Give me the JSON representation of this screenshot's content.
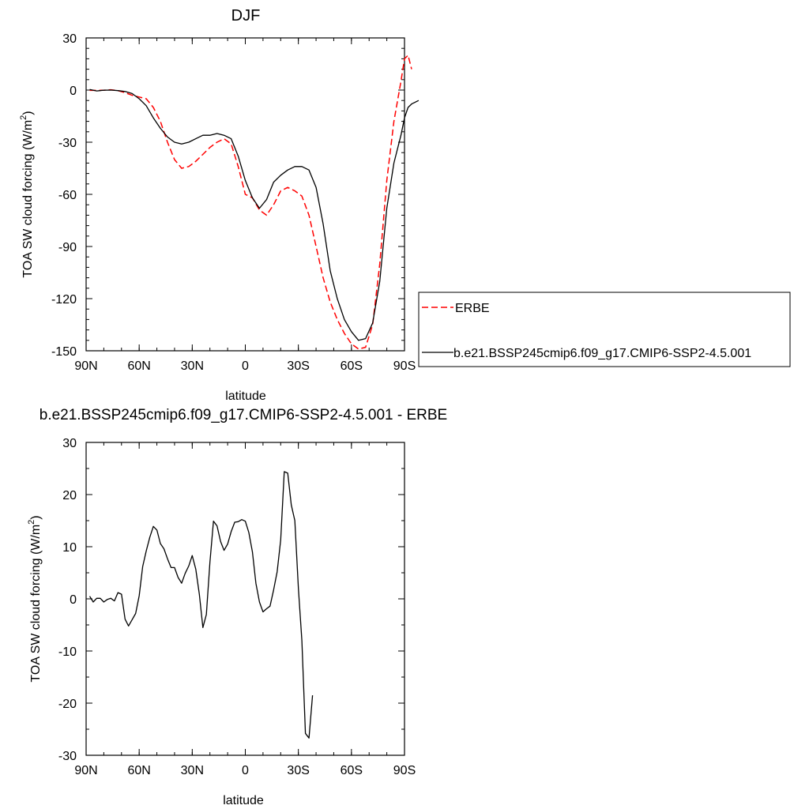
{
  "chart_data": [
    {
      "type": "line",
      "title": "DJF",
      "xlabel": "latitude",
      "ylabel": "TOA SW cloud forcing (W/m²)",
      "ylabel_main": "TOA SW cloud forcing (W/m",
      "ylabel_sup": "2",
      "ylabel_tail": ")",
      "xlim": [
        90,
        -90
      ],
      "ylim": [
        -150,
        30
      ],
      "x_ticks": [
        90,
        60,
        30,
        0,
        -30,
        -60,
        -90
      ],
      "x_tick_labels": [
        "90N",
        "60N",
        "30N",
        "0",
        "30S",
        "60S",
        "90S"
      ],
      "y_ticks": [
        30,
        0,
        -30,
        -60,
        -90,
        -120,
        -150
      ],
      "y_tick_labels": [
        "30",
        "0",
        "-30",
        "-60",
        "-90",
        "-120",
        "-150"
      ],
      "grid": false,
      "legend": {
        "placement": "right",
        "entries": [
          "ERBE",
          "b.e21.BSSP245cmip6.f09_g17.CMIP6-SSP2-4.5.001"
        ]
      },
      "series": [
        {
          "name": "ERBE",
          "color": "#ff0000",
          "dash": true,
          "points": [
            [
              88,
              -0.2
            ],
            [
              84,
              -0.2
            ],
            [
              80,
              -0.1
            ],
            [
              76,
              0.2
            ],
            [
              72,
              -0.3
            ],
            [
              68,
              -1.5
            ],
            [
              64,
              -3
            ],
            [
              60,
              -4
            ],
            [
              56,
              -5
            ],
            [
              52,
              -10
            ],
            [
              48,
              -18
            ],
            [
              44,
              -30
            ],
            [
              40,
              -40
            ],
            [
              36,
              -45
            ],
            [
              32,
              -44
            ],
            [
              28,
              -41
            ],
            [
              24,
              -37
            ],
            [
              20,
              -33
            ],
            [
              16,
              -30
            ],
            [
              12,
              -28
            ],
            [
              8,
              -31
            ],
            [
              4,
              -44
            ],
            [
              0,
              -60
            ],
            [
              -4,
              -62
            ],
            [
              -8,
              -69
            ],
            [
              -12,
              -72
            ],
            [
              -16,
              -66
            ],
            [
              -20,
              -58
            ],
            [
              -24,
              -56
            ],
            [
              -28,
              -58
            ],
            [
              -32,
              -61
            ],
            [
              -36,
              -72
            ],
            [
              -40,
              -90
            ],
            [
              -44,
              -108
            ],
            [
              -48,
              -122
            ],
            [
              -52,
              -132
            ],
            [
              -56,
              -140
            ],
            [
              -60,
              -146
            ],
            [
              -64,
              -149
            ],
            [
              -68,
              -148
            ],
            [
              -72,
              -135
            ],
            [
              -76,
              -100
            ],
            [
              -80,
              -52
            ],
            [
              -84,
              -18
            ],
            [
              -88,
              5
            ],
            [
              -90,
              18
            ],
            [
              -92,
              20
            ],
            [
              -94,
              12
            ]
          ]
        },
        {
          "name": "b.e21.BSSP245cmip6.f09_g17.CMIP6-SSP2-4.5.001",
          "color": "#000000",
          "dash": false,
          "points": [
            [
              88,
              0.3
            ],
            [
              84,
              -0.5
            ],
            [
              80,
              -0.1
            ],
            [
              76,
              0
            ],
            [
              72,
              -0.3
            ],
            [
              68,
              -0.8
            ],
            [
              64,
              -2
            ],
            [
              60,
              -5
            ],
            [
              56,
              -9
            ],
            [
              52,
              -16
            ],
            [
              48,
              -22
            ],
            [
              44,
              -27
            ],
            [
              40,
              -30
            ],
            [
              36,
              -31
            ],
            [
              32,
              -30
            ],
            [
              28,
              -28
            ],
            [
              24,
              -26
            ],
            [
              20,
              -26
            ],
            [
              16,
              -25
            ],
            [
              12,
              -26
            ],
            [
              8,
              -28
            ],
            [
              4,
              -38
            ],
            [
              0,
              -52
            ],
            [
              -4,
              -62
            ],
            [
              -8,
              -68
            ],
            [
              -12,
              -63
            ],
            [
              -16,
              -53
            ],
            [
              -20,
              -49
            ],
            [
              -24,
              -46
            ],
            [
              -28,
              -44
            ],
            [
              -32,
              -44
            ],
            [
              -36,
              -46
            ],
            [
              -40,
              -56
            ],
            [
              -44,
              -77
            ],
            [
              -48,
              -104
            ],
            [
              -52,
              -120
            ],
            [
              -56,
              -132
            ],
            [
              -60,
              -139
            ],
            [
              -64,
              -144
            ],
            [
              -68,
              -143
            ],
            [
              -72,
              -134
            ],
            [
              -76,
              -110
            ],
            [
              -80,
              -68
            ],
            [
              -84,
              -42
            ],
            [
              -88,
              -26
            ],
            [
              -90,
              -16
            ],
            [
              -92,
              -10
            ],
            [
              -94,
              -8
            ],
            [
              -96,
              -7
            ],
            [
              -98,
              -6
            ]
          ]
        }
      ]
    },
    {
      "type": "line",
      "title": "b.e21.BSSP245cmip6.f09_g17.CMIP6-SSP2-4.5.001 - ERBE",
      "xlabel": "latitude",
      "ylabel": "TOA SW cloud forcing (W/m²)",
      "ylabel_main": "TOA SW cloud forcing (W/m",
      "ylabel_sup": "2",
      "ylabel_tail": ")",
      "xlim": [
        90,
        -90
      ],
      "ylim": [
        -30,
        30
      ],
      "x_ticks": [
        90,
        60,
        30,
        0,
        -30,
        -60,
        -90
      ],
      "x_tick_labels": [
        "90N",
        "60N",
        "30N",
        "0",
        "30S",
        "60S",
        "90S"
      ],
      "y_ticks": [
        30,
        20,
        10,
        0,
        -10,
        -20,
        -30
      ],
      "y_tick_labels": [
        "30",
        "20",
        "10",
        "0",
        "-10",
        "-20",
        "-30"
      ],
      "grid": false,
      "series": [
        {
          "color": "#000000",
          "dash": false,
          "points": [
            [
              88,
              0.5
            ],
            [
              86,
              -0.6
            ],
            [
              84,
              0.1
            ],
            [
              82,
              0.1
            ],
            [
              80,
              -0.6
            ],
            [
              78,
              -0.1
            ],
            [
              76,
              0.1
            ],
            [
              74,
              -0.4
            ],
            [
              72,
              1.2
            ],
            [
              70,
              0.9
            ],
            [
              68,
              -3.9
            ],
            [
              66,
              -5.2
            ],
            [
              64,
              -4
            ],
            [
              62,
              -2.8
            ],
            [
              60,
              0.6
            ],
            [
              58,
              6.2
            ],
            [
              56,
              9.2
            ],
            [
              54,
              11.8
            ],
            [
              52,
              13.9
            ],
            [
              50,
              13.2
            ],
            [
              48,
              10.6
            ],
            [
              46,
              9.6
            ],
            [
              44,
              7.7
            ],
            [
              42,
              6
            ],
            [
              40,
              6
            ],
            [
              38,
              4.1
            ],
            [
              36,
              3
            ],
            [
              34,
              4.9
            ],
            [
              32,
              6.3
            ],
            [
              30,
              8.3
            ],
            [
              28,
              5.7
            ],
            [
              26,
              0.9
            ],
            [
              24,
              -5.5
            ],
            [
              22,
              -3
            ],
            [
              20,
              7
            ],
            [
              18,
              14.9
            ],
            [
              16,
              14
            ],
            [
              14,
              11
            ],
            [
              12,
              9.3
            ],
            [
              10,
              10.5
            ],
            [
              8,
              12.9
            ],
            [
              6,
              14.7
            ],
            [
              4,
              14.8
            ],
            [
              2,
              15.2
            ],
            [
              0,
              14.9
            ],
            [
              -2,
              12.7
            ],
            [
              -4,
              9
            ],
            [
              -6,
              3
            ],
            [
              -8,
              -0.6
            ],
            [
              -10,
              -2.5
            ],
            [
              -12,
              -1.9
            ],
            [
              -14,
              -1.4
            ],
            [
              -16,
              1.7
            ],
            [
              -18,
              5.2
            ],
            [
              -20,
              11.3
            ],
            [
              -22,
              24.4
            ],
            [
              -24,
              24.1
            ],
            [
              -26,
              18
            ],
            [
              -28,
              15
            ],
            [
              -30,
              2
            ],
            [
              -32,
              -8
            ],
            [
              -34,
              -25.8
            ],
            [
              -36,
              -26.7
            ],
            [
              -38,
              -18.5
            ]
          ]
        }
      ]
    }
  ]
}
